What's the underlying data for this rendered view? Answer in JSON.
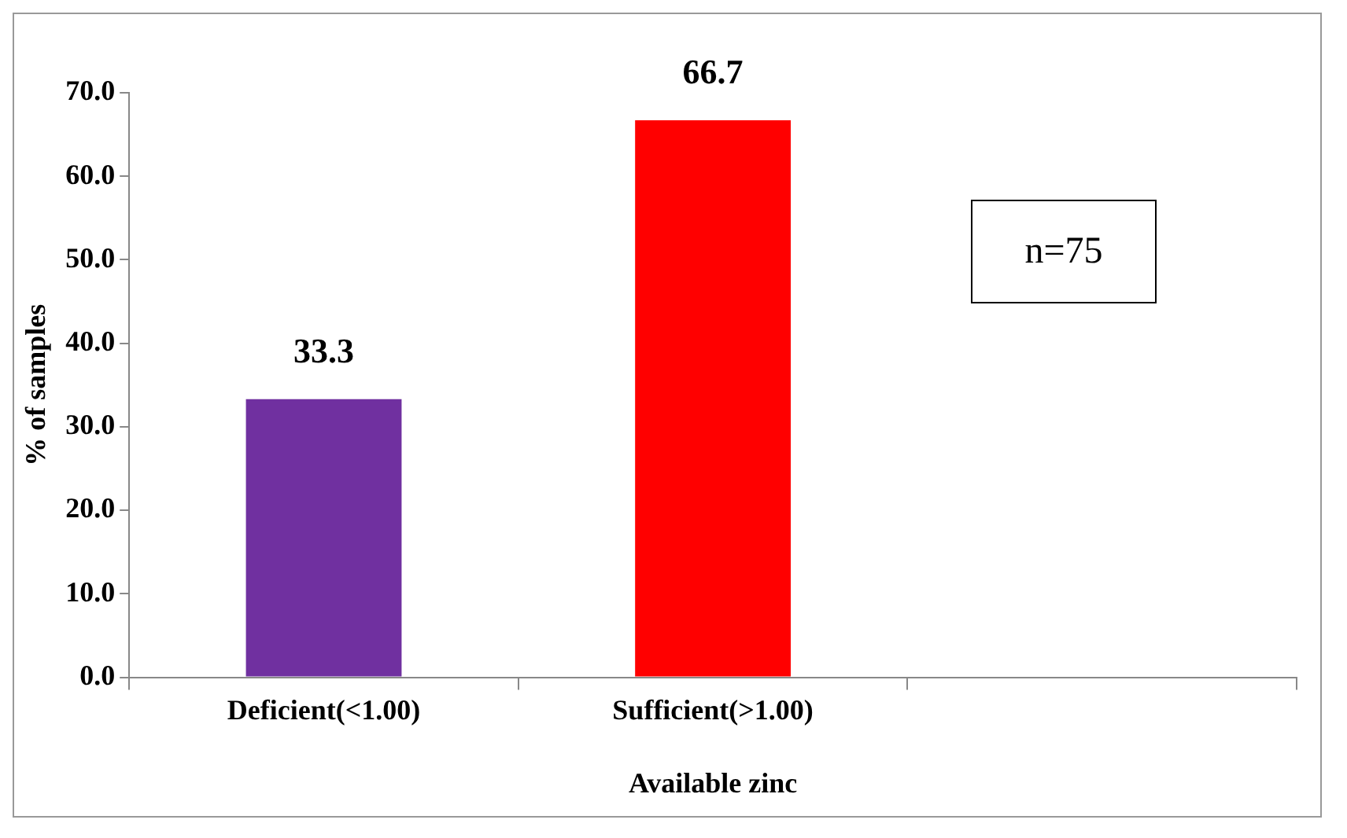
{
  "chart_data": {
    "type": "bar",
    "categories": [
      "Deficient(<1.00)",
      "Sufficient(>1.00)",
      null
    ],
    "values": [
      33.3,
      66.7,
      null
    ],
    "colors": [
      "#7030a0",
      "#ff0000",
      "#000000"
    ],
    "xlabel": "Available zinc",
    "ylabel": "% of samples",
    "ylim": [
      0,
      70
    ],
    "yticks": [
      {
        "value": 0,
        "label": "0.0"
      },
      {
        "value": 10,
        "label": "10.0"
      },
      {
        "value": 20,
        "label": "20.0"
      },
      {
        "value": 30,
        "label": "30.0"
      },
      {
        "value": 40,
        "label": "40.0"
      },
      {
        "value": 50,
        "label": "50.0"
      },
      {
        "value": 60,
        "label": "60.0"
      },
      {
        "value": 70,
        "label": "70.0"
      }
    ],
    "data_labels": true,
    "grid": false,
    "legend": false,
    "annotations": [
      "n=75"
    ]
  }
}
